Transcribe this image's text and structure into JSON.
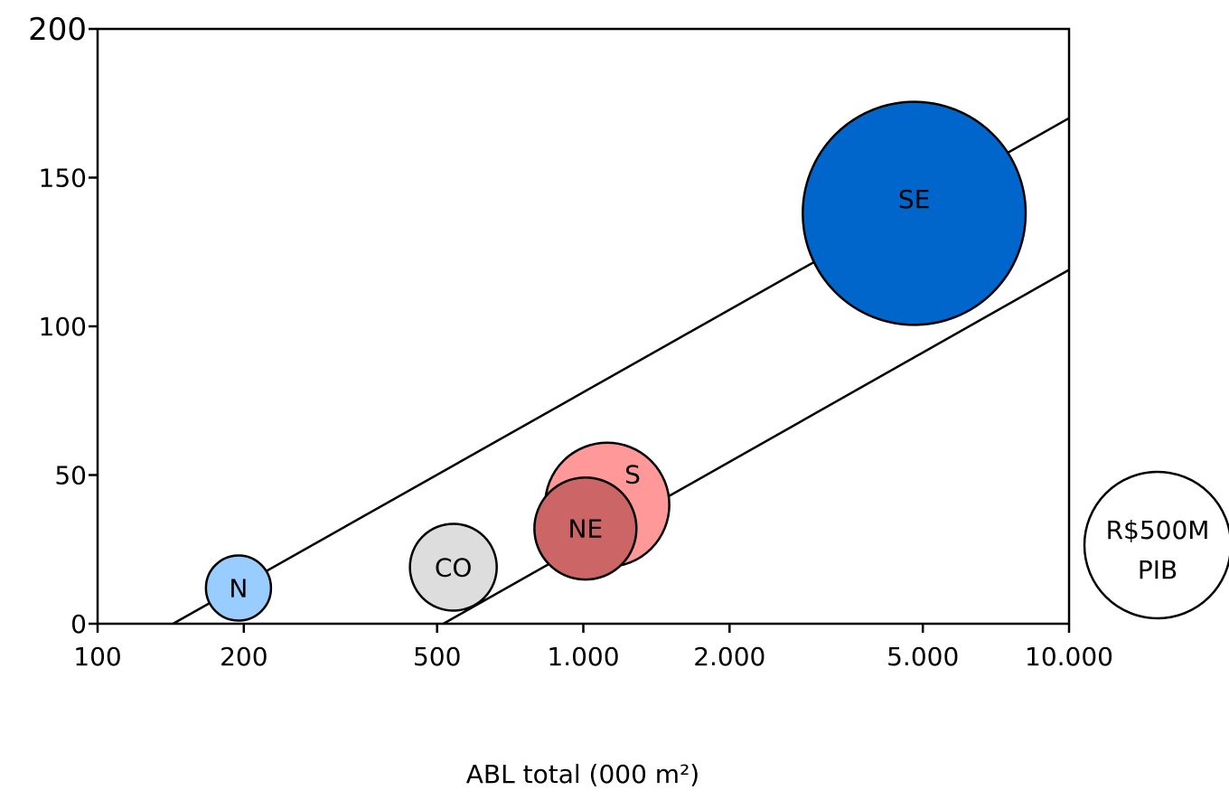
{
  "chart_data": {
    "type": "scatter",
    "title": "",
    "xlabel": "ABL total (000 m²)",
    "ylabel": "",
    "xscale": "log",
    "xlim": [
      100,
      10000
    ],
    "ylim": [
      0,
      200
    ],
    "x_ticks": [
      {
        "value": 100,
        "label": "100"
      },
      {
        "value": 200,
        "label": "200"
      },
      {
        "value": 500,
        "label": "500"
      },
      {
        "value": 1000,
        "label": "1.000"
      },
      {
        "value": 2000,
        "label": "2.000"
      },
      {
        "value": 5000,
        "label": "5.000"
      },
      {
        "value": 10000,
        "label": "10.000"
      }
    ],
    "y_ticks": [
      {
        "value": 0,
        "label": "0"
      },
      {
        "value": 50,
        "label": "50"
      },
      {
        "value": 100,
        "label": "100"
      },
      {
        "value": 150,
        "label": "150"
      },
      {
        "value": 200,
        "label": "200"
      }
    ],
    "bubbles": [
      {
        "label": "N",
        "x": 195,
        "y": 12,
        "pib": 500,
        "color": "#99ccff"
      },
      {
        "label": "CO",
        "x": 540,
        "y": 19,
        "pib": 890,
        "color": "#dddddd"
      },
      {
        "label": "S",
        "x": 1120,
        "y": 40,
        "pib": 1820,
        "color": "#ff9999"
      },
      {
        "label": "NE",
        "x": 1010,
        "y": 32,
        "pib": 1230,
        "color": "#cc6666"
      },
      {
        "label": "SE",
        "x": 4800,
        "y": 138,
        "pib": 5870,
        "color": "#0066cc"
      }
    ],
    "trend_lines": [
      {
        "points": [
          [
            143,
            0
          ],
          [
            10000,
            170
          ]
        ]
      },
      {
        "points": [
          [
            515,
            0
          ],
          [
            10000,
            119
          ]
        ]
      }
    ],
    "legend": {
      "label_line1": "R$500M",
      "label_line2": "PIB",
      "pib": 500,
      "placement": "right"
    },
    "grid": false
  }
}
